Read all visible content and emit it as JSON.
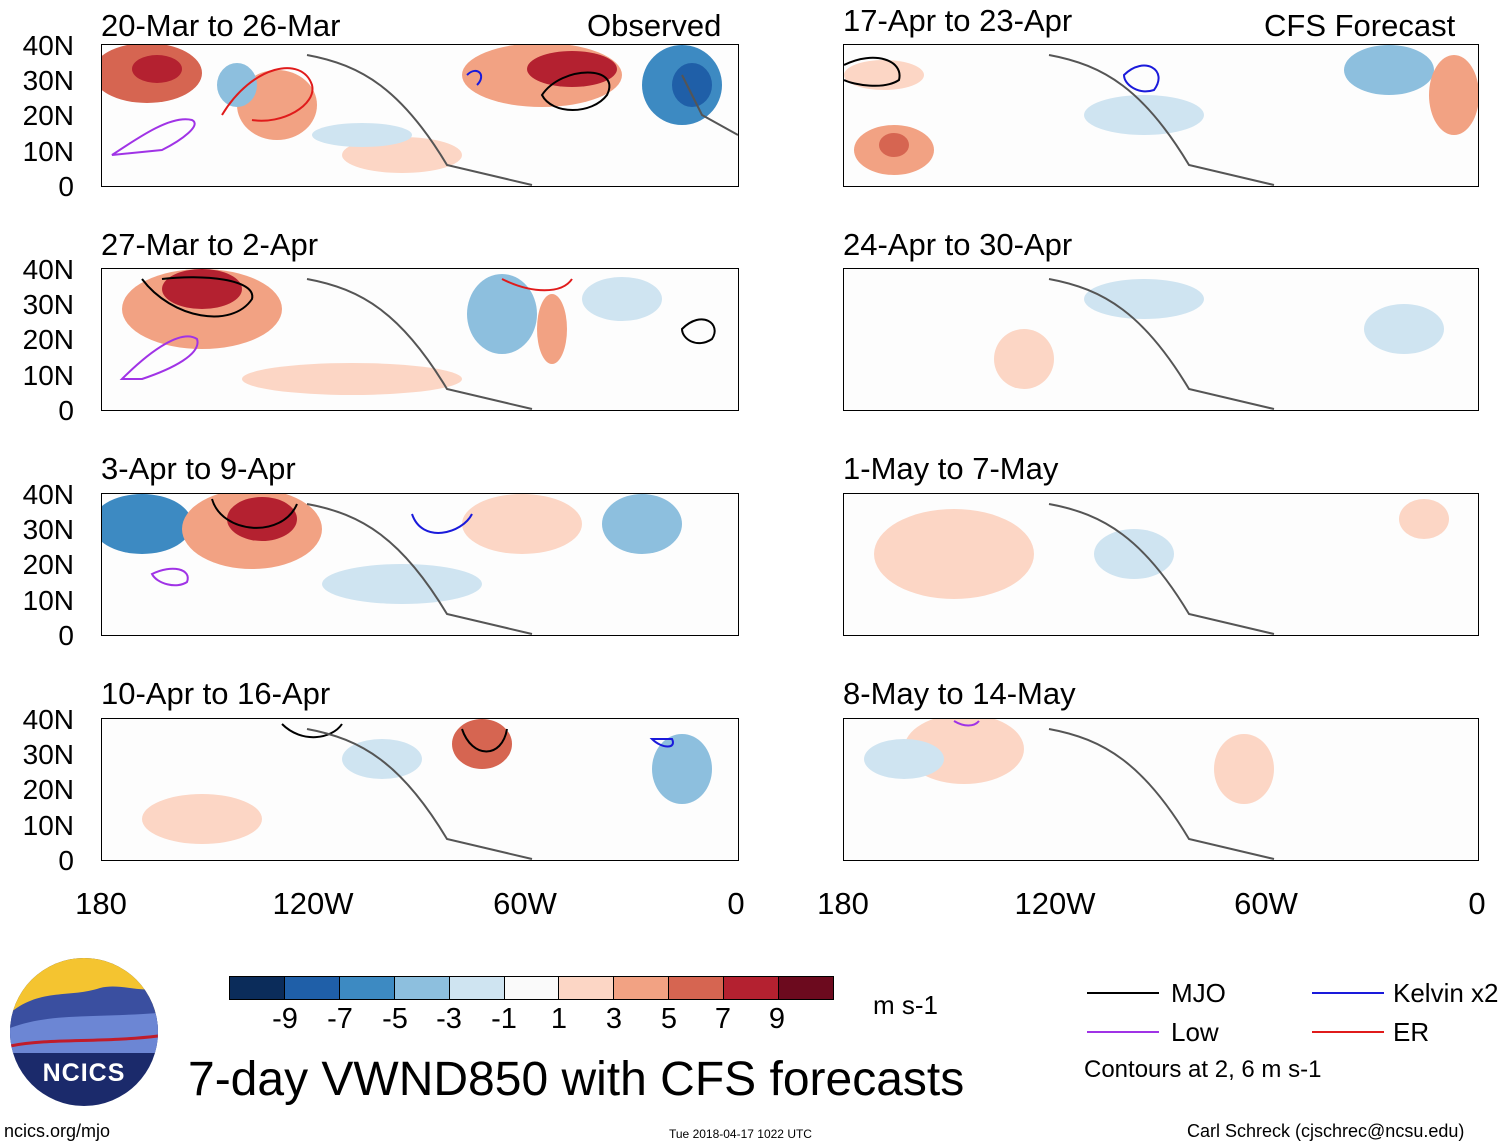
{
  "title": "7-day VWND850 with CFS forecasts",
  "columns": {
    "observed_label": "Observed",
    "forecast_label": "CFS Forecast"
  },
  "panels_observed": [
    {
      "title": "20-Mar to 26-Mar"
    },
    {
      "title": "27-Mar to 2-Apr"
    },
    {
      "title": "3-Apr to 9-Apr"
    },
    {
      "title": "10-Apr to 16-Apr"
    }
  ],
  "panels_forecast": [
    {
      "title": "17-Apr to 23-Apr"
    },
    {
      "title": "24-Apr to 30-Apr"
    },
    {
      "title": "1-May to 7-May"
    },
    {
      "title": "8-May to 14-May"
    }
  ],
  "lat_labels": [
    "40N",
    "30N",
    "20N",
    "10N",
    "0"
  ],
  "lon_labels": [
    "180",
    "120W",
    "60W",
    "0"
  ],
  "colorbar": {
    "ticks": [
      "-9",
      "-7",
      "-5",
      "-3",
      "-1",
      "1",
      "3",
      "5",
      "7",
      "9"
    ],
    "colors": [
      "#0b2c5a",
      "#1f5fa8",
      "#3d8ac2",
      "#8dbfde",
      "#cfe4f1",
      "#fafafa",
      "#fcd6c5",
      "#f2a283",
      "#d66551",
      "#b42130",
      "#6c0a1e"
    ],
    "units": "m s-1"
  },
  "legend": {
    "items": [
      {
        "label": "MJO",
        "color": "#000000"
      },
      {
        "label": "Kelvin x2",
        "color": "#1a1adb"
      },
      {
        "label": "Low",
        "color": "#a033e6"
      },
      {
        "label": "ER",
        "color": "#e01b1b"
      }
    ],
    "note": "Contours at 2, 6 m s-1"
  },
  "logo": {
    "text": "NCICS"
  },
  "footer": {
    "left": "ncics.org/mjo",
    "center": "Tue 2018-04-17 1022 UTC",
    "right": "Carl Schreck (cjschrec@ncsu.edu)"
  }
}
